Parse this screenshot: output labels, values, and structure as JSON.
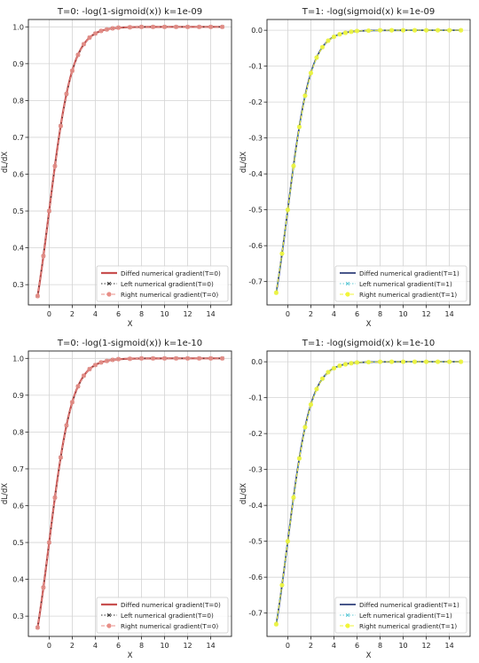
{
  "chart_data": [
    {
      "type": "line",
      "title": "T=0: -log(1-sigmoid(x)) k=1e-09",
      "xlabel": "X",
      "ylabel": "dL/dX",
      "xlim": [
        -1.8,
        15.8
      ],
      "ylim": [
        0.245,
        1.02
      ],
      "xticks": [
        0,
        2,
        4,
        6,
        8,
        10,
        12,
        14
      ],
      "yticks": [
        0.3,
        0.4,
        0.5,
        0.6,
        0.7,
        0.8,
        0.9,
        1.0
      ],
      "ytick_decimals": 1,
      "grid": true,
      "legend_position": "lower-right",
      "function": "sigmoid",
      "x": [
        -1.0,
        -0.5,
        0.0,
        0.5,
        1.0,
        1.5,
        2.0,
        2.5,
        3.0,
        3.5,
        4.0,
        4.5,
        5.0,
        5.5,
        6.0,
        7.0,
        8.0,
        9.0,
        10.0,
        11.0,
        12.0,
        13.0,
        14.0,
        15.0
      ],
      "series": [
        {
          "name": "Diffed numerical gradient(T=0)",
          "color": "#c8504f",
          "style": "solid",
          "width": 2.2,
          "marker": "none",
          "values": [
            0.269,
            0.378,
            0.5,
            0.622,
            0.731,
            0.818,
            0.881,
            0.924,
            0.953,
            0.971,
            0.982,
            0.989,
            0.993,
            0.996,
            0.998,
            0.999,
            1.0,
            1.0,
            1.0,
            1.0,
            1.0,
            1.0,
            1.0,
            1.0
          ]
        },
        {
          "name": "Left numerical gradient(T=0)",
          "color": "#333333",
          "style": "dotted",
          "width": 1.0,
          "marker": "x",
          "values": [
            0.269,
            0.378,
            0.5,
            0.622,
            0.731,
            0.818,
            0.881,
            0.924,
            0.953,
            0.971,
            0.982,
            0.989,
            0.993,
            0.996,
            0.998,
            0.999,
            1.0,
            1.0,
            1.0,
            1.0,
            1.0,
            1.0,
            1.0,
            1.0
          ]
        },
        {
          "name": "Right numerical gradient(T=0)",
          "color": "#e88f88",
          "style": "dashed",
          "width": 1.0,
          "marker": "circle",
          "values": [
            0.269,
            0.378,
            0.5,
            0.622,
            0.731,
            0.818,
            0.881,
            0.924,
            0.953,
            0.971,
            0.982,
            0.989,
            0.993,
            0.996,
            0.998,
            0.999,
            1.0,
            1.0,
            1.0,
            1.0,
            1.0,
            1.0,
            1.0,
            1.0
          ]
        }
      ]
    },
    {
      "type": "line",
      "title": "T=1: -log(sigmoid(x) k=1e-09",
      "xlabel": "X",
      "ylabel": "dL/dX",
      "xlim": [
        -1.8,
        15.8
      ],
      "ylim": [
        -0.765,
        0.03
      ],
      "xticks": [
        0,
        2,
        4,
        6,
        8,
        10,
        12,
        14
      ],
      "yticks": [
        0.0,
        -0.1,
        -0.2,
        -0.3,
        -0.4,
        -0.5,
        -0.6,
        -0.7
      ],
      "ytick_decimals": 1,
      "grid": true,
      "legend_position": "lower-right",
      "function": "sigmoid_minus_one",
      "x": [
        -1.0,
        -0.5,
        0.0,
        0.5,
        1.0,
        1.5,
        2.0,
        2.5,
        3.0,
        3.5,
        4.0,
        4.5,
        5.0,
        5.5,
        6.0,
        7.0,
        8.0,
        9.0,
        10.0,
        11.0,
        12.0,
        13.0,
        14.0,
        15.0
      ],
      "series": [
        {
          "name": "Diffed numerical gradient(T=1)",
          "color": "#2e3f7a",
          "style": "solid",
          "width": 1.8,
          "marker": "none",
          "values": [
            -0.731,
            -0.622,
            -0.5,
            -0.378,
            -0.269,
            -0.182,
            -0.119,
            -0.076,
            -0.047,
            -0.029,
            -0.018,
            -0.011,
            -0.007,
            -0.004,
            -0.002,
            -0.001,
            0.0,
            0.0,
            0.0,
            0.0,
            0.0,
            0.0,
            0.0,
            0.0
          ]
        },
        {
          "name": "Left numerical gradient(T=1)",
          "color": "#5fc9d6",
          "style": "dotted",
          "width": 1.0,
          "marker": "x",
          "values": [
            -0.731,
            -0.622,
            -0.5,
            -0.378,
            -0.269,
            -0.182,
            -0.119,
            -0.076,
            -0.047,
            -0.029,
            -0.018,
            -0.011,
            -0.007,
            -0.004,
            -0.002,
            -0.001,
            0.0,
            0.0,
            0.0,
            0.0,
            0.0,
            0.0,
            0.0,
            0.0
          ]
        },
        {
          "name": "Right numerical gradient(T=1)",
          "color": "#f2f53a",
          "style": "dashed",
          "width": 1.0,
          "marker": "circle",
          "values": [
            -0.731,
            -0.622,
            -0.5,
            -0.378,
            -0.269,
            -0.182,
            -0.119,
            -0.076,
            -0.047,
            -0.029,
            -0.018,
            -0.011,
            -0.007,
            -0.004,
            -0.002,
            -0.001,
            0.0,
            0.0,
            0.0,
            0.0,
            0.0,
            0.0,
            0.0,
            0.0
          ]
        }
      ]
    },
    {
      "type": "line",
      "title": "T=0: -log(1-sigmoid(x)) k=1e-10",
      "xlabel": "X",
      "ylabel": "dL/dX",
      "xlim": [
        -1.8,
        15.8
      ],
      "ylim": [
        0.245,
        1.02
      ],
      "xticks": [
        0,
        2,
        4,
        6,
        8,
        10,
        12,
        14
      ],
      "yticks": [
        0.3,
        0.4,
        0.5,
        0.6,
        0.7,
        0.8,
        0.9,
        1.0
      ],
      "ytick_decimals": 1,
      "grid": true,
      "legend_position": "lower-right",
      "function": "sigmoid",
      "x": [
        -1.0,
        -0.5,
        0.0,
        0.5,
        1.0,
        1.5,
        2.0,
        2.5,
        3.0,
        3.5,
        4.0,
        4.5,
        5.0,
        5.5,
        6.0,
        7.0,
        8.0,
        9.0,
        10.0,
        11.0,
        12.0,
        13.0,
        14.0,
        15.0
      ],
      "series": [
        {
          "name": "Diffed numerical gradient(T=0)",
          "color": "#c8504f",
          "style": "solid",
          "width": 2.2,
          "marker": "none",
          "values": [
            0.269,
            0.378,
            0.5,
            0.622,
            0.731,
            0.818,
            0.881,
            0.924,
            0.953,
            0.971,
            0.982,
            0.989,
            0.993,
            0.996,
            0.998,
            0.999,
            1.0,
            1.0,
            1.0,
            1.0,
            1.0,
            1.0,
            1.0,
            1.0
          ]
        },
        {
          "name": "Left numerical gradient(T=0)",
          "color": "#333333",
          "style": "dotted",
          "width": 1.0,
          "marker": "x",
          "values": [
            0.269,
            0.378,
            0.5,
            0.622,
            0.731,
            0.818,
            0.881,
            0.924,
            0.953,
            0.971,
            0.982,
            0.989,
            0.993,
            0.996,
            0.998,
            0.999,
            1.0,
            1.0,
            1.0,
            1.0,
            1.0,
            1.0,
            1.0,
            1.0
          ]
        },
        {
          "name": "Right numerical gradient(T=0)",
          "color": "#e88f88",
          "style": "dashed",
          "width": 1.0,
          "marker": "circle",
          "values": [
            0.269,
            0.378,
            0.5,
            0.622,
            0.731,
            0.818,
            0.881,
            0.924,
            0.953,
            0.971,
            0.982,
            0.989,
            0.993,
            0.996,
            0.998,
            0.999,
            1.0,
            1.0,
            1.0,
            1.0,
            1.0,
            1.0,
            1.0,
            1.0
          ]
        }
      ]
    },
    {
      "type": "line",
      "title": "T=1: -log(sigmoid(x) k=1e-10",
      "xlabel": "X",
      "ylabel": "dL/dX",
      "xlim": [
        -1.8,
        15.8
      ],
      "ylim": [
        -0.765,
        0.03
      ],
      "xticks": [
        0,
        2,
        4,
        6,
        8,
        10,
        12,
        14
      ],
      "yticks": [
        0.0,
        -0.1,
        -0.2,
        -0.3,
        -0.4,
        -0.5,
        -0.6,
        -0.7
      ],
      "ytick_decimals": 1,
      "grid": true,
      "legend_position": "lower-right",
      "function": "sigmoid_minus_one",
      "x": [
        -1.0,
        -0.5,
        0.0,
        0.5,
        1.0,
        1.5,
        2.0,
        2.5,
        3.0,
        3.5,
        4.0,
        4.5,
        5.0,
        5.5,
        6.0,
        7.0,
        8.0,
        9.0,
        10.0,
        11.0,
        12.0,
        13.0,
        14.0,
        15.0
      ],
      "series": [
        {
          "name": "Diffed numerical gradient(T=1)",
          "color": "#2e3f7a",
          "style": "solid",
          "width": 1.8,
          "marker": "none",
          "values": [
            -0.731,
            -0.622,
            -0.5,
            -0.378,
            -0.269,
            -0.182,
            -0.119,
            -0.076,
            -0.047,
            -0.029,
            -0.018,
            -0.011,
            -0.007,
            -0.004,
            -0.002,
            -0.001,
            0.0,
            0.0,
            0.0,
            0.0,
            0.0,
            0.0,
            0.0,
            0.0
          ]
        },
        {
          "name": "Left numerical gradient(T=1)",
          "color": "#5fc9d6",
          "style": "dotted",
          "width": 1.0,
          "marker": "x",
          "values": [
            -0.731,
            -0.622,
            -0.5,
            -0.378,
            -0.269,
            -0.182,
            -0.119,
            -0.076,
            -0.047,
            -0.029,
            -0.018,
            -0.011,
            -0.007,
            -0.004,
            -0.002,
            -0.001,
            0.0,
            0.0,
            0.0,
            0.0,
            0.0,
            0.0,
            0.0,
            0.0
          ]
        },
        {
          "name": "Right numerical gradient(T=1)",
          "color": "#f2f53a",
          "style": "dashed",
          "width": 1.0,
          "marker": "circle",
          "values": [
            -0.731,
            -0.622,
            -0.5,
            -0.378,
            -0.269,
            -0.182,
            -0.119,
            -0.076,
            -0.047,
            -0.029,
            -0.018,
            -0.011,
            -0.007,
            -0.004,
            -0.002,
            -0.001,
            0.0,
            0.0,
            0.0,
            0.0,
            0.0,
            0.0,
            0.0,
            0.0
          ]
        }
      ]
    }
  ]
}
